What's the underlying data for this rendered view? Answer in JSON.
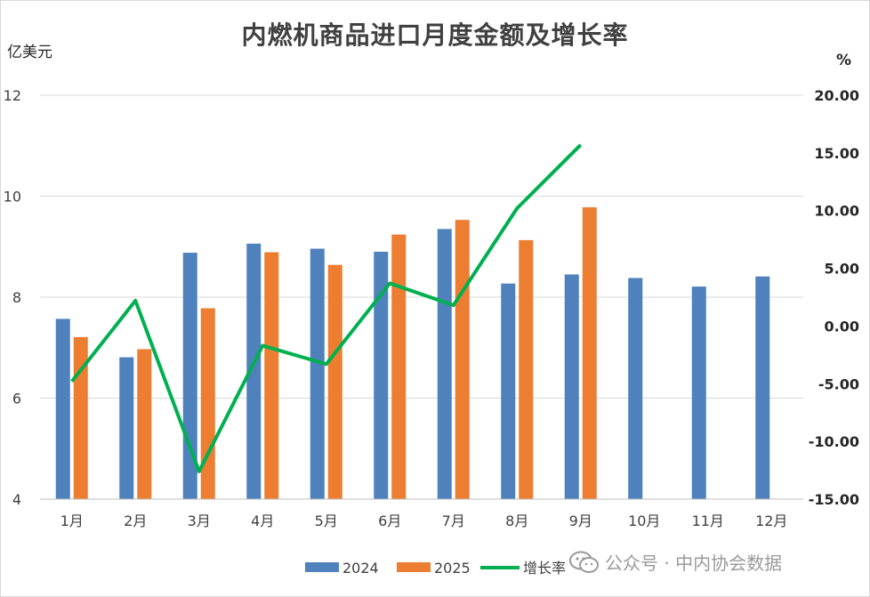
{
  "header": {
    "title": "内燃机商品进口月度金额及增长率",
    "left_unit": "亿美元",
    "right_unit": "%"
  },
  "watermark": {
    "text": "公众号 · 中内协会数据",
    "icon": "wechat-icon"
  },
  "colors": {
    "series_2024": "#4f81bd",
    "series_2025": "#ed7d31",
    "growth_line": "#00b050",
    "grid": "#d9d9d9",
    "axis_text": "#404040"
  },
  "chart_data": {
    "type": "bar",
    "title": "内燃机商品进口月度金额及增长率",
    "ylabel": "亿美元",
    "y2label": "%",
    "categories": [
      "1月",
      "2月",
      "3月",
      "4月",
      "5月",
      "6月",
      "7月",
      "8月",
      "9月",
      "10月",
      "11月",
      "12月"
    ],
    "series": [
      {
        "name": "2024",
        "type": "bar",
        "axis": "left",
        "values": [
          7.57,
          6.81,
          8.88,
          9.06,
          8.96,
          8.9,
          9.35,
          8.27,
          8.45,
          8.38,
          8.21,
          8.41
        ]
      },
      {
        "name": "2025",
        "type": "bar",
        "axis": "left",
        "values": [
          7.21,
          6.97,
          7.78,
          8.89,
          8.64,
          9.24,
          9.53,
          9.13,
          9.78,
          null,
          null,
          null
        ]
      },
      {
        "name": "增长率",
        "type": "line",
        "axis": "right",
        "values": [
          -4.8,
          2.2,
          -12.6,
          -1.7,
          -3.3,
          3.7,
          1.8,
          10.2,
          15.7,
          null,
          null,
          null
        ]
      }
    ],
    "ylim": [
      4,
      12
    ],
    "yticks": [
      "4",
      "6",
      "8",
      "10",
      "12"
    ],
    "y2lim": [
      -15,
      20
    ],
    "y2ticks": [
      "-15.00",
      "-10.00",
      "-5.00",
      "0.00",
      "5.00",
      "10.00",
      "15.00",
      "20.00"
    ],
    "grid": true,
    "legend_position": "bottom"
  }
}
